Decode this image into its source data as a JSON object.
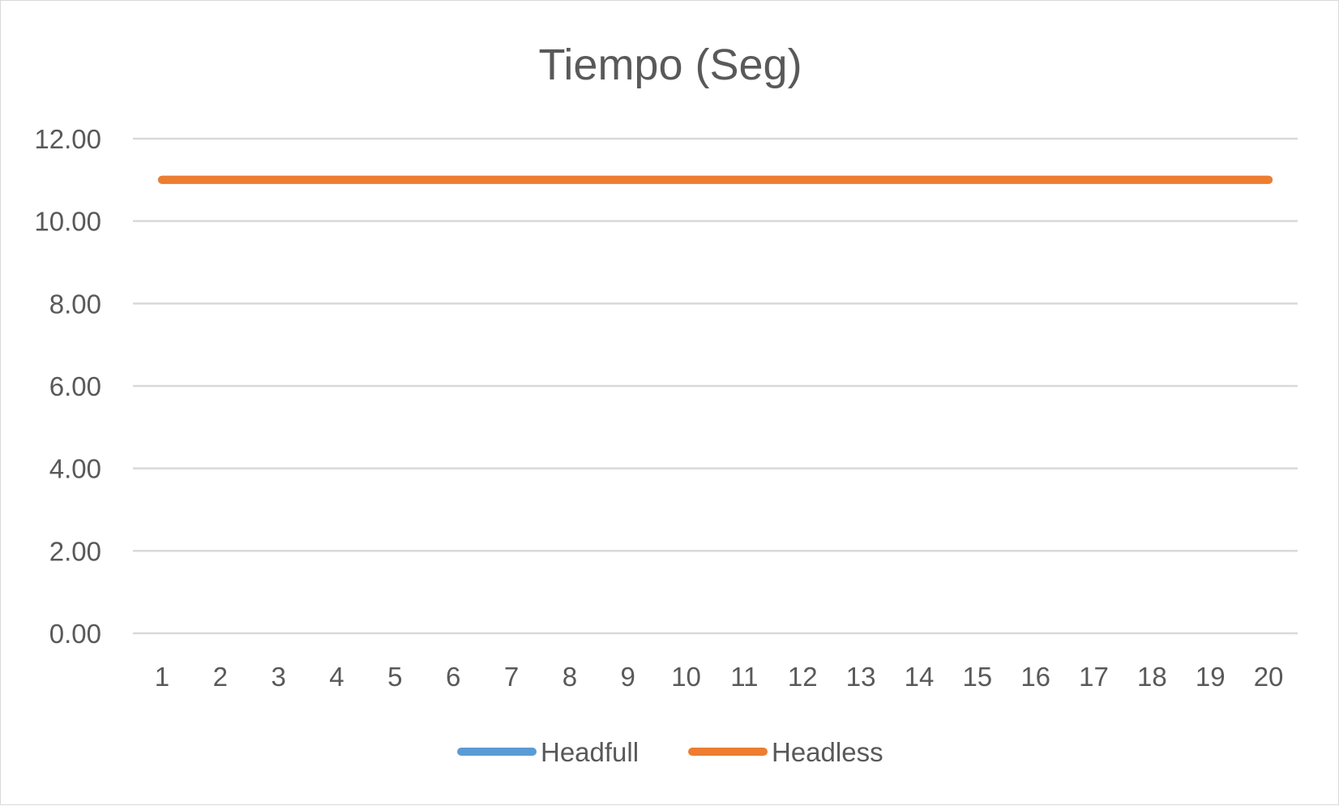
{
  "chart_data": {
    "type": "line",
    "title": "Tiempo (Seg)",
    "x": [
      1,
      2,
      3,
      4,
      5,
      6,
      7,
      8,
      9,
      10,
      11,
      12,
      13,
      14,
      15,
      16,
      17,
      18,
      19,
      20
    ],
    "categories": [
      "1",
      "2",
      "3",
      "4",
      "5",
      "6",
      "7",
      "8",
      "9",
      "10",
      "11",
      "12",
      "13",
      "14",
      "15",
      "16",
      "17",
      "18",
      "19",
      "20"
    ],
    "ylim": [
      0,
      12
    ],
    "yticks": [
      "0.00",
      "2.00",
      "4.00",
      "6.00",
      "8.00",
      "10.00",
      "12.00"
    ],
    "grid": true,
    "legend_position": "bottom",
    "series": [
      {
        "name": "Headfull",
        "color": "#5B9BD5",
        "values": [
          11,
          11,
          11,
          11,
          11,
          11,
          11,
          11,
          11,
          11,
          11,
          11,
          11,
          11,
          11,
          11,
          11,
          11,
          11,
          11
        ]
      },
      {
        "name": "Headless",
        "color": "#ED7D31",
        "values": [
          11,
          11,
          11,
          11,
          11,
          11,
          11,
          11,
          11,
          11,
          11,
          11,
          11,
          11,
          11,
          11,
          11,
          11,
          11,
          11
        ]
      }
    ]
  }
}
